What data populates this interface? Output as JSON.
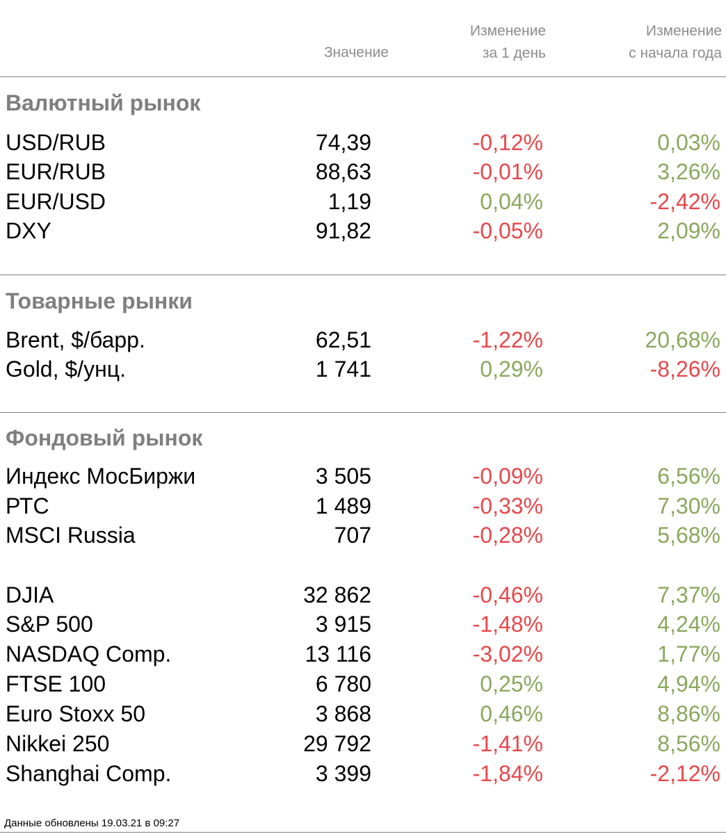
{
  "header": {
    "value_label": "Значение",
    "day_change_line1": "Изменение",
    "day_change_line2": "за 1 день",
    "ytd_change_line1": "Изменение",
    "ytd_change_line2": "с начала года"
  },
  "colors": {
    "negative": "#e8474a",
    "positive": "#8aa85d",
    "section_title": "#7f7f7f",
    "header_text": "#8c8c8c"
  },
  "sections": [
    {
      "title": "Валютный рынок",
      "rows": [
        {
          "name": "USD/RUB",
          "value": "74,39",
          "day": "-0,12%",
          "ytd": "0,03%"
        },
        {
          "name": "EUR/RUB",
          "value": "88,63",
          "day": "-0,01%",
          "ytd": "3,26%"
        },
        {
          "name": "EUR/USD",
          "value": "1,19",
          "day": "0,04%",
          "ytd": "-2,42%"
        },
        {
          "name": "DXY",
          "value": "91,82",
          "day": "-0,05%",
          "ytd": "2,09%"
        }
      ]
    },
    {
      "title": "Товарные рынки",
      "rows": [
        {
          "name": "Brent, $/барр.",
          "value": "62,51",
          "day": "-1,22%",
          "ytd": "20,68%"
        },
        {
          "name": "Gold, $/унц.",
          "value": "1 741",
          "day": "0,29%",
          "ytd": "-8,26%"
        }
      ]
    },
    {
      "title": "Фондовый рынок",
      "rows": [
        {
          "name": "Индекс МосБиржи",
          "value": "3 505",
          "day": "-0,09%",
          "ytd": "6,56%"
        },
        {
          "name": "РТС",
          "value": "1 489",
          "day": "-0,33%",
          "ytd": "7,30%"
        },
        {
          "name": "MSCI Russia",
          "value": "707",
          "day": "-0,28%",
          "ytd": "5,68%"
        },
        {
          "name": "DJIA",
          "value": "32 862",
          "day": "-0,46%",
          "ytd": "7,37%"
        },
        {
          "name": "S&P 500",
          "value": "3 915",
          "day": "-1,48%",
          "ytd": "4,24%"
        },
        {
          "name": "NASDAQ Comp.",
          "value": "13 116",
          "day": "-3,02%",
          "ytd": "1,77%"
        },
        {
          "name": "FTSE 100",
          "value": "6 780",
          "day": "0,25%",
          "ytd": "4,94%"
        },
        {
          "name": "Euro Stoxx 50",
          "value": "3 868",
          "day": "0,46%",
          "ytd": "8,86%"
        },
        {
          "name": "Nikkei 250",
          "value": "29 792",
          "day": "-1,41%",
          "ytd": "8,56%"
        },
        {
          "name": "Shanghai Comp.",
          "value": "3 399",
          "day": "-1,84%",
          "ytd": "-2,12%"
        }
      ]
    }
  ],
  "footnote": "Данные обновлены 19.03.21 в 09:27"
}
